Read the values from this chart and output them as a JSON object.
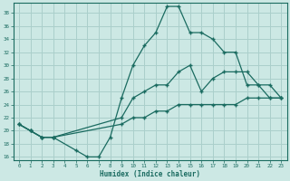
{
  "xlabel": "Humidex (Indice chaleur)",
  "background_color": "#cce8e4",
  "grid_color": "#aacfcb",
  "line_color": "#1a6b60",
  "xlim": [
    -0.5,
    23.5
  ],
  "ylim": [
    15.5,
    39.5
  ],
  "xticks": [
    0,
    1,
    2,
    3,
    4,
    5,
    6,
    7,
    8,
    9,
    10,
    11,
    12,
    13,
    14,
    15,
    16,
    17,
    18,
    19,
    20,
    21,
    22,
    23
  ],
  "yticks": [
    16,
    18,
    20,
    22,
    24,
    26,
    28,
    30,
    32,
    34,
    36,
    38
  ],
  "line1_x": [
    0,
    1,
    2,
    3,
    5,
    6,
    7,
    8,
    9,
    10,
    11,
    12,
    13,
    14,
    15,
    16,
    17,
    18,
    19,
    20,
    21,
    22,
    23
  ],
  "line1_y": [
    21,
    20,
    19,
    19,
    17,
    16,
    16,
    19,
    25,
    30,
    33,
    35,
    39,
    39,
    35,
    35,
    34,
    32,
    32,
    27,
    27,
    25,
    25
  ],
  "line2_x": [
    0,
    1,
    2,
    3,
    9,
    10,
    11,
    12,
    13,
    14,
    15,
    16,
    17,
    18,
    19,
    20,
    21,
    22,
    23
  ],
  "line2_y": [
    21,
    20,
    19,
    19,
    22,
    25,
    26,
    27,
    27,
    29,
    30,
    26,
    28,
    29,
    29,
    29,
    27,
    27,
    25
  ],
  "line3_x": [
    0,
    1,
    2,
    3,
    9,
    10,
    11,
    12,
    13,
    14,
    15,
    16,
    17,
    18,
    19,
    20,
    21,
    22,
    23
  ],
  "line3_y": [
    21,
    20,
    19,
    19,
    21,
    22,
    22,
    23,
    23,
    24,
    24,
    24,
    24,
    24,
    24,
    25,
    25,
    25,
    25
  ]
}
